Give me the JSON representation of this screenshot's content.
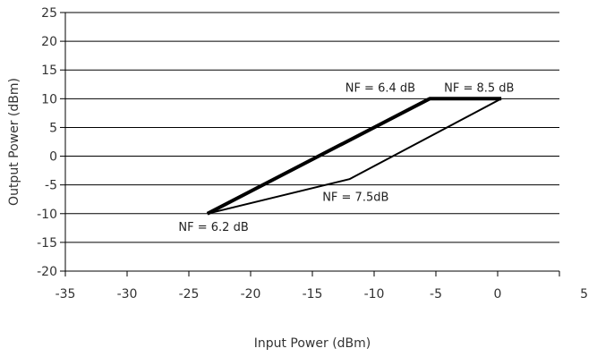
{
  "chart_data": {
    "type": "line",
    "title": "",
    "xlabel": "Input Power (dBm)",
    "ylabel": "Output Power (dBm)",
    "xlim": [
      -35,
      5
    ],
    "ylim": [
      -20,
      25
    ],
    "x_ticks": [
      -35,
      -30,
      -25,
      -20,
      -15,
      -10,
      -5,
      0,
      5
    ],
    "y_ticks": [
      -20,
      -15,
      -10,
      -5,
      0,
      5,
      10,
      15,
      20,
      25
    ],
    "x_tick_labels": [
      "-35",
      "-30",
      "-25",
      "-20",
      "-15",
      "-10",
      "-5",
      "0",
      "5"
    ],
    "y_tick_labels": [
      "-20",
      "-15",
      "-10",
      "-5",
      "0",
      "5",
      "10",
      "15",
      "20",
      "25"
    ],
    "grid": "horizontal",
    "legend": "none",
    "series": [
      {
        "x": [
          -23.5,
          -5.5,
          0.3
        ],
        "y": [
          -10,
          10,
          10
        ],
        "color": "#000000",
        "weight": "bold"
      },
      {
        "x": [
          -23.5,
          -12,
          0.3
        ],
        "y": [
          -10,
          -4,
          10
        ],
        "color": "#000000",
        "weight": "thin"
      }
    ],
    "annotations": [
      {
        "text": "NF = 6.4 dB",
        "x": -9.5,
        "y": 11.2
      },
      {
        "text": "NF =  8.5 dB",
        "x": -1.5,
        "y": 11.2
      },
      {
        "text": "NF = 7.5dB",
        "x": -11.5,
        "y": -7.8
      },
      {
        "text": "NF = 6.2 dB",
        "x": -23,
        "y": -13
      }
    ]
  }
}
